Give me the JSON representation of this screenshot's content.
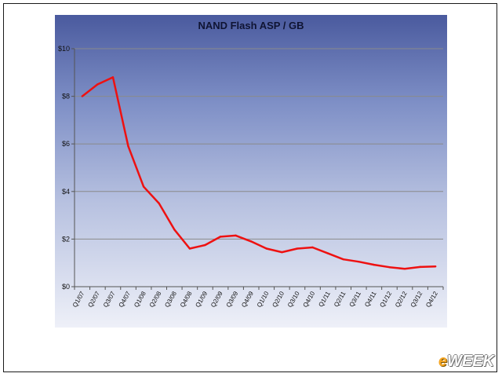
{
  "chart_data": {
    "type": "line",
    "title": "NAND Flash ASP / GB",
    "xlabel": "",
    "ylabel": "",
    "categories": [
      "Q1/07",
      "Q2/07",
      "Q3/07",
      "Q4/07",
      "Q1/08",
      "Q2/08",
      "Q3/08",
      "Q4/08",
      "Q1/09",
      "Q2/09",
      "Q3/09",
      "Q4/09",
      "Q1/10",
      "Q2/10",
      "Q3/10",
      "Q4/10",
      "Q1/11",
      "Q2/11",
      "Q3/11",
      "Q4/11",
      "Q1/12",
      "Q2/12",
      "Q3/12",
      "Q4/12"
    ],
    "series": [
      {
        "values": [
          8.0,
          8.5,
          8.8,
          5.9,
          4.2,
          3.5,
          2.4,
          1.6,
          1.75,
          2.1,
          2.15,
          1.9,
          1.6,
          1.45,
          1.6,
          1.65,
          1.4,
          1.15,
          1.05,
          0.92,
          0.82,
          0.75,
          0.83,
          0.85
        ],
        "color": "#ee1111"
      }
    ],
    "ylim": [
      0,
      10
    ],
    "yticks": [
      0,
      2,
      4,
      6,
      8,
      10
    ],
    "ytick_labels": [
      "$0",
      "$2",
      "$4",
      "$6",
      "$8",
      "$10"
    ],
    "grid": true
  },
  "watermark": {
    "prefix": "e",
    "text": "WEEK"
  }
}
